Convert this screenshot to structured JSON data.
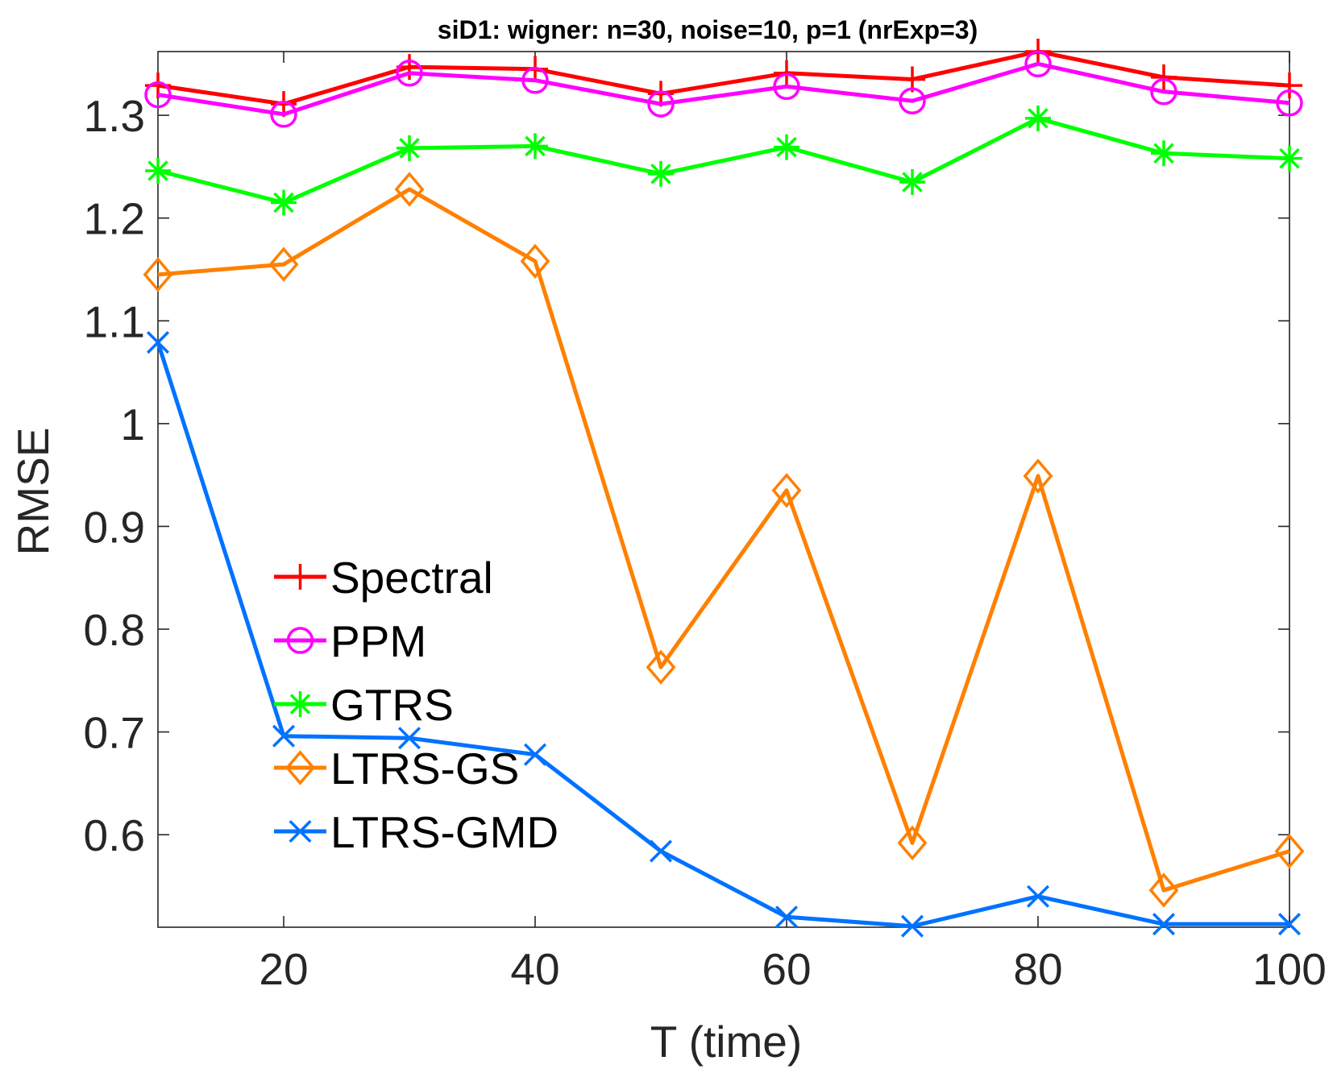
{
  "chart_data": {
    "type": "line",
    "title": "siD1: wigner: n=30, noise=10, p=1 (nrExp=3)",
    "xlabel": "T (time)",
    "ylabel": "RMSE",
    "xlim": [
      10,
      100
    ],
    "ylim": [
      0.51,
      1.362
    ],
    "xticks": [
      20,
      40,
      60,
      80,
      100
    ],
    "yticks": [
      0.6,
      0.7,
      0.8,
      0.9,
      1,
      1.1,
      1.2,
      1.3
    ],
    "ytick_labels": [
      "0.6",
      "0.7",
      "0.8",
      "0.9",
      "1",
      "1.1",
      "1.2",
      "1.3"
    ],
    "grid": false,
    "legend": "center-left",
    "x": [
      10,
      20,
      30,
      40,
      50,
      60,
      70,
      80,
      90,
      100
    ],
    "series": [
      {
        "name": "Spectral",
        "color": "#ff0000",
        "marker": "plus",
        "values": [
          1.329,
          1.311,
          1.347,
          1.345,
          1.321,
          1.341,
          1.335,
          1.362,
          1.337,
          1.329
        ]
      },
      {
        "name": "PPM",
        "color": "#ff00ff",
        "marker": "circle",
        "values": [
          1.32,
          1.301,
          1.341,
          1.334,
          1.311,
          1.328,
          1.314,
          1.35,
          1.323,
          1.312
        ]
      },
      {
        "name": "GTRS",
        "color": "#00ff00",
        "marker": "asterisk",
        "values": [
          1.246,
          1.215,
          1.268,
          1.27,
          1.243,
          1.269,
          1.235,
          1.297,
          1.263,
          1.258
        ]
      },
      {
        "name": "LTRS-GS",
        "color": "#ff8000",
        "marker": "diamond",
        "values": [
          1.145,
          1.155,
          1.228,
          1.158,
          0.763,
          0.935,
          0.592,
          0.949,
          0.546,
          0.584
        ]
      },
      {
        "name": "LTRS-GMD",
        "color": "#0072ff",
        "marker": "x",
        "values": [
          1.079,
          0.696,
          0.694,
          0.678,
          0.584,
          0.52,
          0.511,
          0.54,
          0.513,
          0.513
        ]
      }
    ]
  }
}
